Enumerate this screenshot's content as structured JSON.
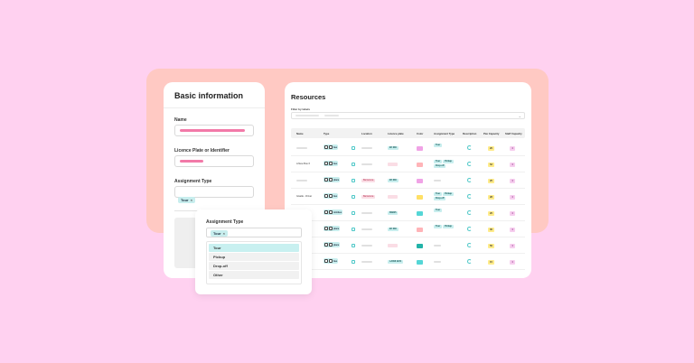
{
  "basic": {
    "title": "Basic information",
    "name_label": "Name",
    "licence_label": "Licence Plate or Identifier",
    "assignment_label": "Assignment Type",
    "assignment_chip": "Tour"
  },
  "popup": {
    "title": "Assignment Type",
    "chip": "Tour",
    "options": [
      "Tour",
      "Pickup",
      "Drop-off",
      "Other"
    ]
  },
  "resources": {
    "title": "Resources",
    "filter_label": "Filter by labels",
    "headers": [
      "Name",
      "Type",
      "Location",
      "Licence plate",
      "Color",
      "Assignment Type",
      "Description",
      "Pax Capacity",
      "Staff Capacity"
    ],
    "rows": [
      {
        "name": "",
        "types": [
          "bus"
        ],
        "location": "",
        "loc_badge": "",
        "plate": "EF 636",
        "color": "#f0a3e6",
        "assign": [
          "Tour"
        ],
        "pax": "20",
        "staff": "4"
      },
      {
        "name": "A New Bus X",
        "types": [
          "bus"
        ],
        "location": "",
        "loc_badge": "",
        "plate": "",
        "color": "#ffb4b8",
        "assign": [
          "Tour",
          "Pickup",
          "Drop-off"
        ],
        "pax": "52",
        "staff": "4"
      },
      {
        "name": "",
        "types": [
          "plane"
        ],
        "location": "Barcelona",
        "loc_badge": "Barcelona",
        "plate": "EF 636",
        "color": "#f0a3e6",
        "assign": [],
        "pax": "25",
        "staff": "4"
      },
      {
        "name": "Giselle - Driver",
        "types": [
          "bus"
        ],
        "location": "Barcelona",
        "loc_badge": "Barcelona",
        "plate": "",
        "color": "#ffe066",
        "assign": [
          "Tour",
          "Pickup",
          "Drop-off"
        ],
        "pax": "28",
        "staff": "4"
      },
      {
        "name": "",
        "types": [
          "minibus"
        ],
        "location": "",
        "loc_badge": "",
        "plate": "BN225",
        "color": "#55d6d6",
        "assign": [
          "Tour"
        ],
        "pax": "20",
        "staff": "4"
      },
      {
        "name": "",
        "types": [
          "plane"
        ],
        "location": "",
        "loc_badge": "",
        "plate": "EF 636",
        "color": "#ffb4b8",
        "assign": [
          "Tour",
          "Pickup"
        ],
        "pax": "35",
        "staff": "4"
      },
      {
        "name": "",
        "types": [
          "plane"
        ],
        "location": "",
        "loc_badge": "",
        "plate": "",
        "color": "#22b3a8",
        "assign": [],
        "pax": "50",
        "staff": "4"
      },
      {
        "name": "",
        "types": [
          "bus"
        ],
        "location": "",
        "loc_badge": "",
        "plate": "LA096 2221",
        "color": "#55d6d6",
        "assign": [],
        "pax": "15",
        "staff": "4"
      }
    ]
  },
  "colors": {
    "background": "#ffd1f0",
    "backdrop": "#ffc9c3",
    "accent": "#c8eeee",
    "pink": "#f27aa8"
  }
}
